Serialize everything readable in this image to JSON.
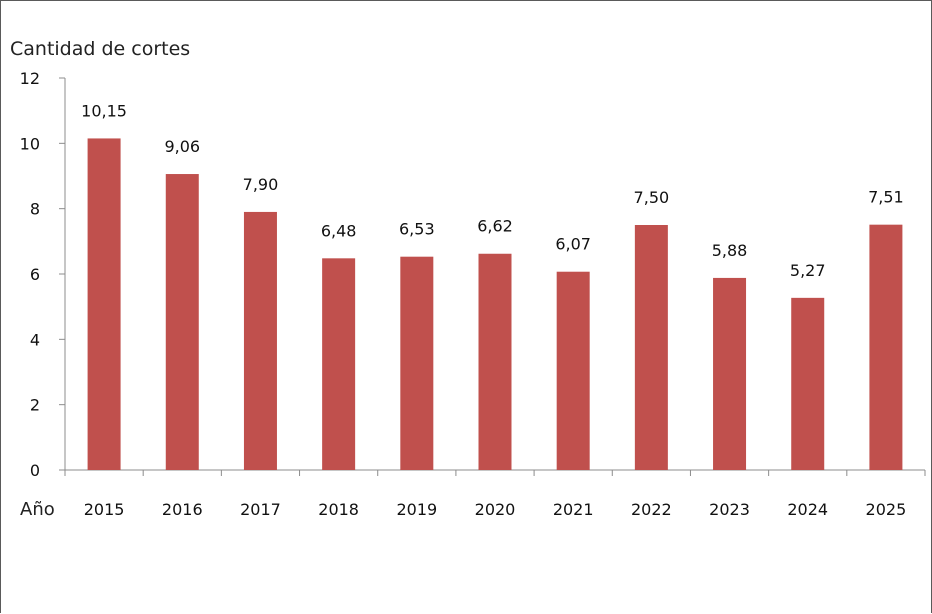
{
  "chart_data": {
    "type": "bar",
    "categories": [
      "2015",
      "2016",
      "2017",
      "2018",
      "2019",
      "2020",
      "2021",
      "2022",
      "2023",
      "2024",
      "2025"
    ],
    "values": [
      10.15,
      9.06,
      7.9,
      6.48,
      6.53,
      6.62,
      6.07,
      7.5,
      5.88,
      5.27,
      7.51
    ],
    "data_labels": [
      "10,15",
      "9,06",
      "7,90",
      "6,48",
      "6,53",
      "6,62",
      "6,07",
      "7,50",
      "5,88",
      "5,27",
      "7,51"
    ],
    "title": "",
    "ylabel": "Cantidad de cortes",
    "xlabel": "Año",
    "ylim": [
      0,
      12
    ],
    "yticks": [
      0,
      2,
      4,
      6,
      8,
      10,
      12
    ],
    "ytick_labels": [
      "0",
      "2",
      "4",
      "6",
      "8",
      "10",
      "12"
    ],
    "grid": false,
    "legend": "none",
    "bar_color": "#c0504d",
    "axis_color": "#8c8c8c"
  }
}
